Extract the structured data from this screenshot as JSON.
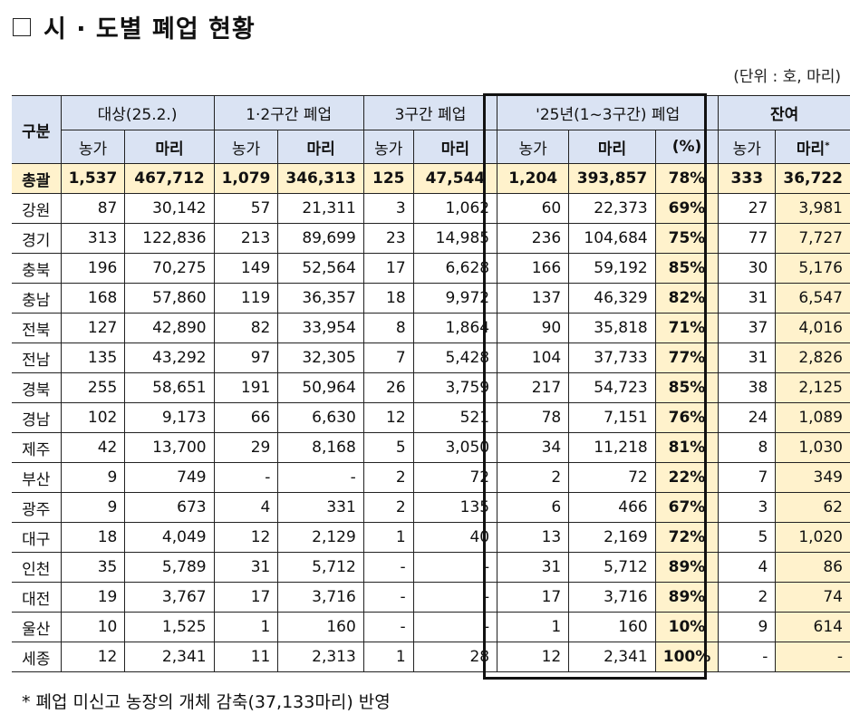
{
  "title": "시 · 도별 폐업 현황",
  "unit_note": "(단위 : 호, 마리)",
  "table": {
    "group_headers": {
      "region": "구분",
      "target": "대상(25.2.)",
      "closed_12": "1·2구간 폐업",
      "closed_3": "3구간 폐업",
      "closed_2025": "'25년(1~3구간) 폐업",
      "remaining": "잔여"
    },
    "sub_headers": {
      "farms": "농가",
      "heads": "마리",
      "percent": "(%)",
      "heads_star": "마리",
      "star": "*"
    },
    "total": {
      "region": "총괄",
      "target_farms": "1,537",
      "target_heads": "467,712",
      "c12_farms": "1,079",
      "c12_heads": "346,313",
      "c3_farms": "125",
      "c3_heads": "47,544",
      "y25_farms": "1,204",
      "y25_heads": "393,857",
      "y25_pct": "78%",
      "rem_farms": "333",
      "rem_heads": "36,722"
    },
    "rows": [
      {
        "region": "강원",
        "target_farms": "87",
        "target_heads": "30,142",
        "c12_farms": "57",
        "c12_heads": "21,311",
        "c3_farms": "3",
        "c3_heads": "1,062",
        "y25_farms": "60",
        "y25_heads": "22,373",
        "y25_pct": "69%",
        "rem_farms": "27",
        "rem_heads": "3,981"
      },
      {
        "region": "경기",
        "target_farms": "313",
        "target_heads": "122,836",
        "c12_farms": "213",
        "c12_heads": "89,699",
        "c3_farms": "23",
        "c3_heads": "14,985",
        "y25_farms": "236",
        "y25_heads": "104,684",
        "y25_pct": "75%",
        "rem_farms": "77",
        "rem_heads": "7,727"
      },
      {
        "region": "충북",
        "target_farms": "196",
        "target_heads": "70,275",
        "c12_farms": "149",
        "c12_heads": "52,564",
        "c3_farms": "17",
        "c3_heads": "6,628",
        "y25_farms": "166",
        "y25_heads": "59,192",
        "y25_pct": "85%",
        "rem_farms": "30",
        "rem_heads": "5,176"
      },
      {
        "region": "충남",
        "target_farms": "168",
        "target_heads": "57,860",
        "c12_farms": "119",
        "c12_heads": "36,357",
        "c3_farms": "18",
        "c3_heads": "9,972",
        "y25_farms": "137",
        "y25_heads": "46,329",
        "y25_pct": "82%",
        "rem_farms": "31",
        "rem_heads": "6,547"
      },
      {
        "region": "전북",
        "target_farms": "127",
        "target_heads": "42,890",
        "c12_farms": "82",
        "c12_heads": "33,954",
        "c3_farms": "8",
        "c3_heads": "1,864",
        "y25_farms": "90",
        "y25_heads": "35,818",
        "y25_pct": "71%",
        "rem_farms": "37",
        "rem_heads": "4,016"
      },
      {
        "region": "전남",
        "target_farms": "135",
        "target_heads": "43,292",
        "c12_farms": "97",
        "c12_heads": "32,305",
        "c3_farms": "7",
        "c3_heads": "5,428",
        "y25_farms": "104",
        "y25_heads": "37,733",
        "y25_pct": "77%",
        "rem_farms": "31",
        "rem_heads": "2,826"
      },
      {
        "region": "경북",
        "target_farms": "255",
        "target_heads": "58,651",
        "c12_farms": "191",
        "c12_heads": "50,964",
        "c3_farms": "26",
        "c3_heads": "3,759",
        "y25_farms": "217",
        "y25_heads": "54,723",
        "y25_pct": "85%",
        "rem_farms": "38",
        "rem_heads": "2,125"
      },
      {
        "region": "경남",
        "target_farms": "102",
        "target_heads": "9,173",
        "c12_farms": "66",
        "c12_heads": "6,630",
        "c3_farms": "12",
        "c3_heads": "521",
        "y25_farms": "78",
        "y25_heads": "7,151",
        "y25_pct": "76%",
        "rem_farms": "24",
        "rem_heads": "1,089"
      },
      {
        "region": "제주",
        "target_farms": "42",
        "target_heads": "13,700",
        "c12_farms": "29",
        "c12_heads": "8,168",
        "c3_farms": "5",
        "c3_heads": "3,050",
        "y25_farms": "34",
        "y25_heads": "11,218",
        "y25_pct": "81%",
        "rem_farms": "8",
        "rem_heads": "1,030"
      },
      {
        "region": "부산",
        "target_farms": "9",
        "target_heads": "749",
        "c12_farms": "-",
        "c12_heads": "-",
        "c3_farms": "2",
        "c3_heads": "72",
        "y25_farms": "2",
        "y25_heads": "72",
        "y25_pct": "22%",
        "rem_farms": "7",
        "rem_heads": "349"
      },
      {
        "region": "광주",
        "target_farms": "9",
        "target_heads": "673",
        "c12_farms": "4",
        "c12_heads": "331",
        "c3_farms": "2",
        "c3_heads": "135",
        "y25_farms": "6",
        "y25_heads": "466",
        "y25_pct": "67%",
        "rem_farms": "3",
        "rem_heads": "62"
      },
      {
        "region": "대구",
        "target_farms": "18",
        "target_heads": "4,049",
        "c12_farms": "12",
        "c12_heads": "2,129",
        "c3_farms": "1",
        "c3_heads": "40",
        "y25_farms": "13",
        "y25_heads": "2,169",
        "y25_pct": "72%",
        "rem_farms": "5",
        "rem_heads": "1,020"
      },
      {
        "region": "인천",
        "target_farms": "35",
        "target_heads": "5,789",
        "c12_farms": "31",
        "c12_heads": "5,712",
        "c3_farms": "-",
        "c3_heads": "-",
        "y25_farms": "31",
        "y25_heads": "5,712",
        "y25_pct": "89%",
        "rem_farms": "4",
        "rem_heads": "86"
      },
      {
        "region": "대전",
        "target_farms": "19",
        "target_heads": "3,767",
        "c12_farms": "17",
        "c12_heads": "3,716",
        "c3_farms": "-",
        "c3_heads": "-",
        "y25_farms": "17",
        "y25_heads": "3,716",
        "y25_pct": "89%",
        "rem_farms": "2",
        "rem_heads": "74"
      },
      {
        "region": "울산",
        "target_farms": "10",
        "target_heads": "1,525",
        "c12_farms": "1",
        "c12_heads": "160",
        "c3_farms": "-",
        "c3_heads": "-",
        "y25_farms": "1",
        "y25_heads": "160",
        "y25_pct": "10%",
        "rem_farms": "9",
        "rem_heads": "614"
      },
      {
        "region": "세종",
        "target_farms": "12",
        "target_heads": "2,341",
        "c12_farms": "11",
        "c12_heads": "2,313",
        "c3_farms": "1",
        "c3_heads": "28",
        "y25_farms": "12",
        "y25_heads": "2,341",
        "y25_pct": "100%",
        "rem_farms": "-",
        "rem_heads": "-"
      }
    ]
  },
  "footnote": "* 폐업 미신고 농장의 개체 감축(37,133마리) 반영",
  "colors": {
    "header_bg": "#dae3f3",
    "highlight_bg": "#fff2cc",
    "border": "#222222"
  }
}
